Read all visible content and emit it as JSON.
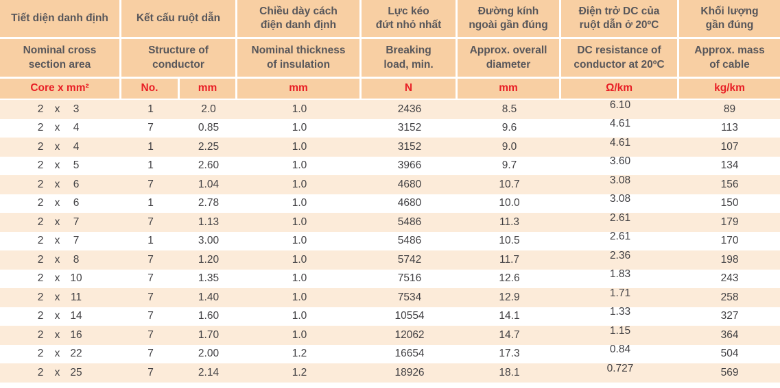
{
  "colors": {
    "header_bg": "#f8cfa3",
    "stripe_bg": "#fcebd9",
    "header_text": "#57565a",
    "data_text": "#414043",
    "unit_red": "#e81e25",
    "border_white": "#ffffff"
  },
  "table": {
    "columns": [
      {
        "id": "cross_section",
        "vi": "Tiết diện danh định",
        "en": "Nominal cross\nsection area",
        "unit": "Core x mm²"
      },
      {
        "id": "conductor_structure",
        "vi": "Kết cấu ruột dẫn",
        "en": "Structure of conductor",
        "units": [
          "No.",
          "mm"
        ]
      },
      {
        "id": "insulation_thickness",
        "vi": "Chiều dày cách\nđiện danh định",
        "en": "Nominal thickness\nof insulation",
        "unit": "mm"
      },
      {
        "id": "breaking_load",
        "vi": "Lực kéo\nđứt nhỏ nhất",
        "en": "Breaking\nload, min.",
        "unit": "N"
      },
      {
        "id": "overall_diameter",
        "vi": "Đường kính\nngoài gần đúng",
        "en": "Approx. overall\ndiameter",
        "unit": "mm"
      },
      {
        "id": "dc_resistance",
        "vi": "Điện trở DC của\nruột dẫn ở 20ºC",
        "en": "DC resistance of\nconductor at 20ºC",
        "unit": "Ω/km"
      },
      {
        "id": "mass",
        "vi": "Khối lượng\ngần đúng",
        "en": "Approx. mass\nof cable",
        "unit": "kg/km"
      }
    ],
    "rows": [
      {
        "cores": "2",
        "sep": "x",
        "size": "3",
        "strands": "1",
        "strand_mm": "2.0",
        "insulation_mm": "1.0",
        "breaking_n": "2436",
        "diameter_mm": "8.5",
        "resistance": "6.10",
        "mass": "89"
      },
      {
        "cores": "2",
        "sep": "x",
        "size": "4",
        "strands": "7",
        "strand_mm": "0.85",
        "insulation_mm": "1.0",
        "breaking_n": "3152",
        "diameter_mm": "9.6",
        "resistance": "4.61",
        "mass": "113"
      },
      {
        "cores": "2",
        "sep": "x",
        "size": "4",
        "strands": "1",
        "strand_mm": "2.25",
        "insulation_mm": "1.0",
        "breaking_n": "3152",
        "diameter_mm": "9.0",
        "resistance": "4.61",
        "mass": "107"
      },
      {
        "cores": "2",
        "sep": "x",
        "size": "5",
        "strands": "1",
        "strand_mm": "2.60",
        "insulation_mm": "1.0",
        "breaking_n": "3966",
        "diameter_mm": "9.7",
        "resistance": "3.60",
        "mass": "134"
      },
      {
        "cores": "2",
        "sep": "x",
        "size": "6",
        "strands": "7",
        "strand_mm": "1.04",
        "insulation_mm": "1.0",
        "breaking_n": "4680",
        "diameter_mm": "10.7",
        "resistance": "3.08",
        "mass": "156"
      },
      {
        "cores": "2",
        "sep": "x",
        "size": "6",
        "strands": "1",
        "strand_mm": "2.78",
        "insulation_mm": "1.0",
        "breaking_n": "4680",
        "diameter_mm": "10.0",
        "resistance": "3.08",
        "mass": "150"
      },
      {
        "cores": "2",
        "sep": "x",
        "size": "7",
        "strands": "7",
        "strand_mm": "1.13",
        "insulation_mm": "1.0",
        "breaking_n": "5486",
        "diameter_mm": "11.3",
        "resistance": "2.61",
        "mass": "179"
      },
      {
        "cores": "2",
        "sep": "x",
        "size": "7",
        "strands": "1",
        "strand_mm": "3.00",
        "insulation_mm": "1.0",
        "breaking_n": "5486",
        "diameter_mm": "10.5",
        "resistance": "2.61",
        "mass": "170"
      },
      {
        "cores": "2",
        "sep": "x",
        "size": "8",
        "strands": "7",
        "strand_mm": "1.20",
        "insulation_mm": "1.0",
        "breaking_n": "5742",
        "diameter_mm": "11.7",
        "resistance": "2.36",
        "mass": "198"
      },
      {
        "cores": "2",
        "sep": "x",
        "size": "10",
        "strands": "7",
        "strand_mm": "1.35",
        "insulation_mm": "1.0",
        "breaking_n": "7516",
        "diameter_mm": "12.6",
        "resistance": "1.83",
        "mass": "243"
      },
      {
        "cores": "2",
        "sep": "x",
        "size": "11",
        "strands": "7",
        "strand_mm": "1.40",
        "insulation_mm": "1.0",
        "breaking_n": "7534",
        "diameter_mm": "12.9",
        "resistance": "1.71",
        "mass": "258"
      },
      {
        "cores": "2",
        "sep": "x",
        "size": "14",
        "strands": "7",
        "strand_mm": "1.60",
        "insulation_mm": "1.0",
        "breaking_n": "10554",
        "diameter_mm": "14.1",
        "resistance": "1.33",
        "mass": "327"
      },
      {
        "cores": "2",
        "sep": "x",
        "size": "16",
        "strands": "7",
        "strand_mm": "1.70",
        "insulation_mm": "1.0",
        "breaking_n": "12062",
        "diameter_mm": "14.7",
        "resistance": "1.15",
        "mass": "364"
      },
      {
        "cores": "2",
        "sep": "x",
        "size": "22",
        "strands": "7",
        "strand_mm": "2.00",
        "insulation_mm": "1.2",
        "breaking_n": "16654",
        "diameter_mm": "17.3",
        "resistance": "0.84",
        "mass": "504"
      },
      {
        "cores": "2",
        "sep": "x",
        "size": "25",
        "strands": "7",
        "strand_mm": "2.14",
        "insulation_mm": "1.2",
        "breaking_n": "18926",
        "diameter_mm": "18.1",
        "resistance": "0.727",
        "mass": "569"
      }
    ]
  }
}
